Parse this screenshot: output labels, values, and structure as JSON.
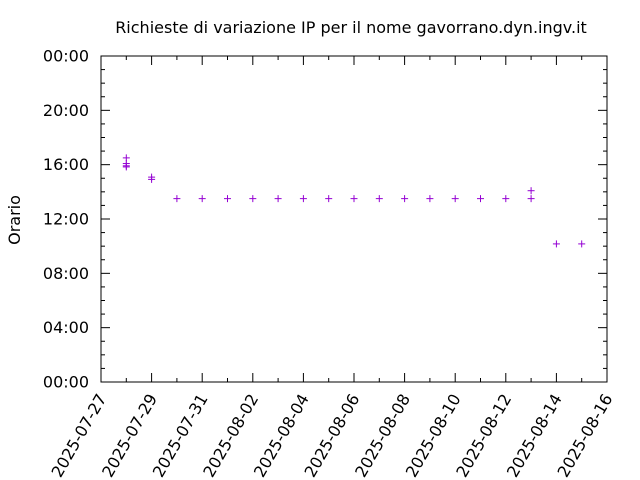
{
  "chart_data": {
    "type": "scatter",
    "title": "Richieste di variazione IP per il nome gavorrano.dyn.ingv.it",
    "xlabel": "",
    "ylabel": "Orario",
    "x_ticks": [
      "2025-07-27",
      "2025-07-29",
      "2025-07-31",
      "2025-08-02",
      "2025-08-04",
      "2025-08-06",
      "2025-08-08",
      "2025-08-10",
      "2025-08-12",
      "2025-08-14",
      "2025-08-16"
    ],
    "y_ticks": [
      "00:00",
      "04:00",
      "08:00",
      "12:00",
      "16:00",
      "20:00",
      "00:00"
    ],
    "xlim": [
      "2025-07-27",
      "2025-08-16"
    ],
    "ylim": [
      "00:00",
      "24:00"
    ],
    "grid": false,
    "marker": "+",
    "marker_color": "#9400d3",
    "points": [
      {
        "x": "2025-07-28",
        "y": "16:30"
      },
      {
        "x": "2025-07-28",
        "y": "16:05"
      },
      {
        "x": "2025-07-28",
        "y": "15:55"
      },
      {
        "x": "2025-07-28",
        "y": "15:50"
      },
      {
        "x": "2025-07-29",
        "y": "15:05"
      },
      {
        "x": "2025-07-29",
        "y": "14:55"
      },
      {
        "x": "2025-07-30",
        "y": "13:30"
      },
      {
        "x": "2025-07-31",
        "y": "13:30"
      },
      {
        "x": "2025-08-01",
        "y": "13:30"
      },
      {
        "x": "2025-08-02",
        "y": "13:30"
      },
      {
        "x": "2025-08-03",
        "y": "13:30"
      },
      {
        "x": "2025-08-04",
        "y": "13:30"
      },
      {
        "x": "2025-08-05",
        "y": "13:30"
      },
      {
        "x": "2025-08-06",
        "y": "13:30"
      },
      {
        "x": "2025-08-07",
        "y": "13:30"
      },
      {
        "x": "2025-08-08",
        "y": "13:30"
      },
      {
        "x": "2025-08-09",
        "y": "13:30"
      },
      {
        "x": "2025-08-10",
        "y": "13:30"
      },
      {
        "x": "2025-08-11",
        "y": "13:30"
      },
      {
        "x": "2025-08-12",
        "y": "13:30"
      },
      {
        "x": "2025-08-13",
        "y": "14:05"
      },
      {
        "x": "2025-08-13",
        "y": "13:30"
      },
      {
        "x": "2025-08-14",
        "y": "10:10"
      },
      {
        "x": "2025-08-15",
        "y": "10:10"
      }
    ]
  }
}
